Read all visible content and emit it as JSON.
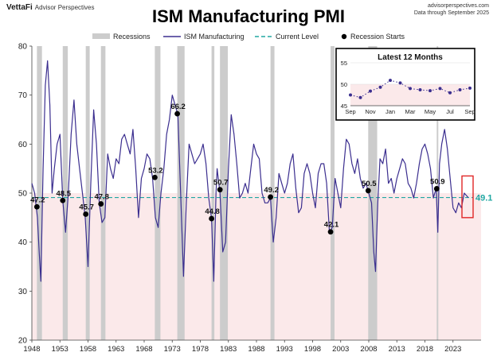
{
  "header": {
    "logo_brand": "VettaFi",
    "logo_sub": "Advisor Perspectives",
    "source_site": "advisorperspectives.com",
    "source_note": "Data through September 2025"
  },
  "chart_data": {
    "type": "line",
    "title": "ISM Manufacturing PMI",
    "ylim": [
      20,
      80
    ],
    "yticks": [
      20,
      30,
      40,
      50,
      60,
      70,
      80
    ],
    "xlim": [
      1948,
      2028
    ],
    "xticks": [
      1948,
      1953,
      1958,
      1963,
      1968,
      1973,
      1978,
      1983,
      1988,
      1993,
      1998,
      2003,
      2008,
      2013,
      2018,
      2023
    ],
    "legend": {
      "position": "top",
      "items": [
        "Recessions",
        "ISM Manufacturing",
        "Current Level",
        "Recession Starts"
      ]
    },
    "colors": {
      "line": "#3b2e8f",
      "current": "#20a7a2",
      "recession": "#cccccc",
      "contraction_shade": "#fbe9ea",
      "highlight_box": "#e02626"
    },
    "current_level": 49.1,
    "recessions": [
      [
        1948.9,
        1949.8
      ],
      [
        1953.5,
        1954.4
      ],
      [
        1957.6,
        1958.3
      ],
      [
        1960.3,
        1961.1
      ],
      [
        1969.9,
        1970.9
      ],
      [
        1973.9,
        1975.2
      ],
      [
        1980.0,
        1980.5
      ],
      [
        1981.5,
        1982.9
      ],
      [
        1990.5,
        1991.2
      ],
      [
        2001.2,
        2001.9
      ],
      [
        2007.9,
        2009.5
      ],
      [
        2020.1,
        2020.3
      ]
    ],
    "recession_starts": [
      {
        "x": 1948.9,
        "y": 47.2,
        "label": "47.2"
      },
      {
        "x": 1953.5,
        "y": 48.5,
        "label": "48.5"
      },
      {
        "x": 1957.6,
        "y": 45.7,
        "label": "45.7"
      },
      {
        "x": 1960.3,
        "y": 47.8,
        "label": "47.8"
      },
      {
        "x": 1969.9,
        "y": 53.2,
        "label": "53.2"
      },
      {
        "x": 1973.9,
        "y": 66.2,
        "label": "66.2"
      },
      {
        "x": 1980.0,
        "y": 44.8,
        "label": "44.8"
      },
      {
        "x": 1981.5,
        "y": 50.7,
        "label": "50.7"
      },
      {
        "x": 1990.5,
        "y": 49.2,
        "label": "49.2"
      },
      {
        "x": 2001.2,
        "y": 42.1,
        "label": "42.1"
      },
      {
        "x": 2007.9,
        "y": 50.5,
        "label": "50.5"
      },
      {
        "x": 2020.1,
        "y": 50.9,
        "label": "50.9"
      }
    ],
    "series": [
      {
        "name": "ISM Manufacturing",
        "x": [
          1948.0,
          1948.5,
          1949.0,
          1949.3,
          1949.6,
          1950.0,
          1950.4,
          1950.8,
          1951.2,
          1951.6,
          1952.0,
          1952.5,
          1953.0,
          1953.5,
          1954.0,
          1954.5,
          1955.0,
          1955.5,
          1956.0,
          1956.5,
          1957.0,
          1957.5,
          1958.0,
          1958.5,
          1959.0,
          1959.5,
          1960.0,
          1960.5,
          1961.0,
          1961.5,
          1962.0,
          1962.5,
          1963.0,
          1963.5,
          1964.0,
          1964.5,
          1965.0,
          1965.5,
          1966.0,
          1966.5,
          1967.0,
          1967.5,
          1968.0,
          1968.5,
          1969.0,
          1969.5,
          1970.0,
          1970.5,
          1971.0,
          1971.5,
          1972.0,
          1972.5,
          1973.0,
          1973.5,
          1974.0,
          1974.5,
          1975.0,
          1975.5,
          1976.0,
          1976.5,
          1977.0,
          1977.5,
          1978.0,
          1978.5,
          1979.0,
          1979.5,
          1980.0,
          1980.4,
          1980.8,
          1981.0,
          1981.5,
          1982.0,
          1982.5,
          1983.0,
          1983.5,
          1984.0,
          1984.5,
          1985.0,
          1985.5,
          1986.0,
          1986.5,
          1987.0,
          1987.5,
          1988.0,
          1988.5,
          1989.0,
          1989.5,
          1990.0,
          1990.5,
          1991.0,
          1991.5,
          1992.0,
          1992.5,
          1993.0,
          1993.5,
          1994.0,
          1994.5,
          1995.0,
          1995.5,
          1996.0,
          1996.5,
          1997.0,
          1997.5,
          1998.0,
          1998.5,
          1999.0,
          1999.5,
          2000.0,
          2000.5,
          2001.0,
          2001.5,
          2002.0,
          2002.5,
          2003.0,
          2003.5,
          2004.0,
          2004.5,
          2005.0,
          2005.5,
          2006.0,
          2006.5,
          2007.0,
          2007.5,
          2008.0,
          2008.5,
          2008.9,
          2009.2,
          2009.6,
          2010.0,
          2010.5,
          2011.0,
          2011.5,
          2012.0,
          2012.5,
          2013.0,
          2013.5,
          2014.0,
          2014.5,
          2015.0,
          2015.5,
          2016.0,
          2016.5,
          2017.0,
          2017.5,
          2018.0,
          2018.5,
          2019.0,
          2019.5,
          2020.0,
          2020.3,
          2020.6,
          2021.0,
          2021.5,
          2022.0,
          2022.5,
          2023.0,
          2023.5,
          2024.0,
          2024.5,
          2025.0,
          2025.7
        ],
        "y": [
          52.0,
          50.0,
          45.0,
          38.0,
          32.0,
          55.0,
          72.0,
          77.0,
          68.0,
          50.0,
          55.0,
          60.0,
          62.0,
          48.5,
          42.0,
          50.0,
          62.0,
          69.0,
          60.0,
          55.0,
          50.0,
          45.0,
          35.0,
          52.0,
          67.0,
          60.0,
          48.0,
          44.0,
          45.0,
          58.0,
          55.0,
          53.0,
          57.0,
          56.0,
          61.0,
          62.0,
          60.0,
          58.0,
          63.0,
          55.0,
          45.0,
          53.0,
          55.0,
          58.0,
          57.0,
          53.0,
          45.0,
          43.0,
          50.0,
          55.0,
          62.0,
          65.0,
          70.0,
          68.0,
          66.0,
          50.0,
          33.0,
          48.0,
          60.0,
          58.0,
          56.0,
          57.0,
          58.0,
          60.0,
          56.0,
          49.0,
          44.8,
          32.0,
          50.0,
          55.0,
          50.0,
          38.0,
          40.0,
          55.0,
          66.0,
          62.0,
          56.0,
          49.0,
          50.0,
          52.0,
          50.0,
          55.0,
          60.0,
          58.0,
          57.0,
          50.0,
          48.0,
          48.0,
          49.0,
          40.0,
          45.0,
          54.0,
          52.0,
          50.0,
          52.0,
          56.0,
          58.0,
          51.0,
          46.0,
          47.0,
          54.0,
          56.0,
          54.0,
          50.0,
          47.0,
          54.0,
          56.0,
          56.0,
          52.0,
          42.0,
          43.0,
          53.0,
          50.0,
          47.0,
          55.0,
          61.0,
          60.0,
          56.0,
          54.0,
          57.0,
          53.0,
          51.0,
          52.0,
          50.0,
          48.0,
          38.0,
          34.0,
          48.0,
          57.0,
          56.0,
          59.0,
          52.0,
          53.0,
          50.0,
          53.0,
          55.0,
          57.0,
          56.0,
          52.0,
          51.0,
          49.0,
          52.0,
          56.0,
          59.0,
          60.0,
          58.0,
          55.0,
          49.0,
          51.0,
          42.0,
          56.0,
          60.0,
          63.0,
          59.0,
          53.0,
          47.0,
          46.0,
          48.0,
          47.0,
          50.0,
          49.1
        ]
      },
      {
        "name": "Latest 12 Months",
        "x_labels": [
          "Sep",
          "Nov",
          "Jan",
          "Mar",
          "May",
          "Jul",
          "Sep"
        ],
        "ylim": [
          45,
          55
        ],
        "yticks": [
          45,
          50,
          55
        ],
        "months": [
          "Sep",
          "Oct",
          "Nov",
          "Dec",
          "Jan",
          "Feb",
          "Mar",
          "Apr",
          "May",
          "Jun",
          "Jul",
          "Aug",
          "Sep"
        ],
        "values": [
          47.5,
          46.9,
          48.4,
          49.3,
          50.9,
          50.3,
          49.0,
          48.7,
          48.5,
          49.0,
          48.0,
          48.7,
          49.1
        ]
      }
    ]
  }
}
